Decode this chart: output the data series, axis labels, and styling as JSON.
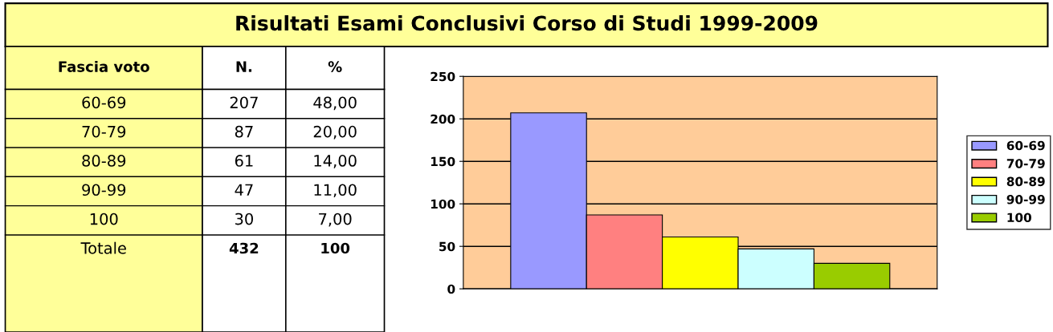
{
  "chart_data": [
    {
      "type": "other",
      "title": "Risultati Esami Conclusivi Corso di Studi 1999-2009",
      "annotations": [
        "Fascia voto",
        "N.",
        "%",
        "60-69",
        "207",
        "48,00",
        "70-79",
        "87",
        "20,00",
        "80-89",
        "61",
        "14,00",
        "90-99",
        "47",
        "11,00",
        "100",
        "30",
        "7,00",
        "Totale",
        "432",
        "100"
      ]
    },
    {
      "type": "bar",
      "categories": [
        null
      ],
      "series": [
        {
          "name": "60-69",
          "color": "#9999ff",
          "values": [
            207
          ]
        },
        {
          "name": "70-79",
          "color": "#ff8080",
          "values": [
            87
          ]
        },
        {
          "name": "80-89",
          "color": "#ffff00",
          "values": [
            61
          ]
        },
        {
          "name": "90-99",
          "color": "#ccffff",
          "values": [
            47
          ]
        },
        {
          "name": "100",
          "color": "#99cc00",
          "values": [
            30
          ]
        }
      ],
      "ylim": [
        0,
        250
      ],
      "yticks": [
        0,
        50,
        100,
        150,
        200,
        250
      ],
      "grid": "y",
      "legend": "right"
    }
  ]
}
